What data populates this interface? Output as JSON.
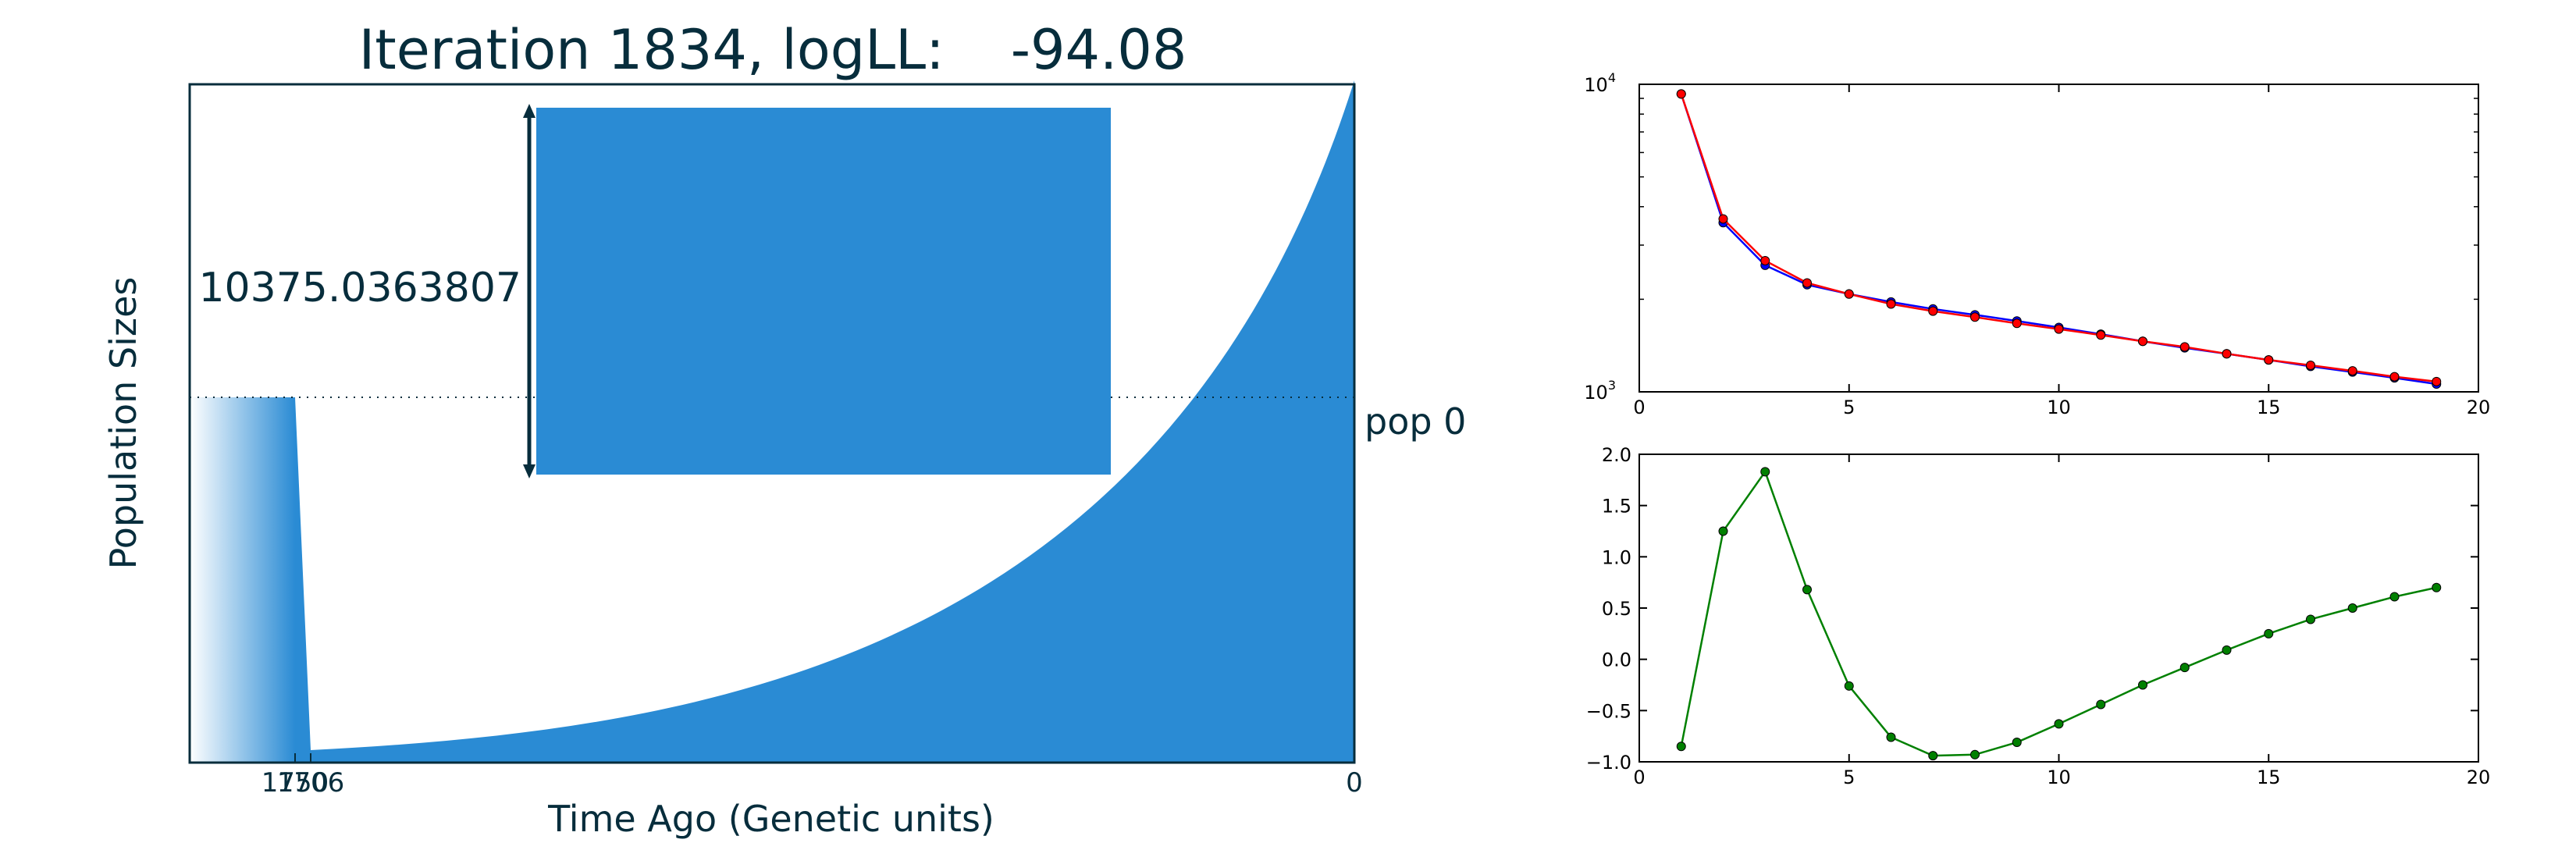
{
  "title": {
    "prefix": "Iteration 1834, logLL:",
    "value": "-94.08"
  },
  "colors": {
    "fill": "#2a8bd4",
    "dark_text": "#072d3c",
    "series_blue": "#0000ff",
    "series_red": "#ff0000",
    "series_green": "#008000",
    "axes": "#000000"
  },
  "chart_data": [
    {
      "type": "area",
      "ylabel": "Population Sizes",
      "xlabel": "Time Ago (Genetic units)",
      "xticks": [
        "1750",
        "1706",
        "0"
      ],
      "ref_line_label": "pop 0",
      "scale_value_label": "10375.0363807",
      "grid": false,
      "shape": {
        "recent_segment": "exponential growth from time 0 (largest size) to ~1706 (smallest size)",
        "ancient_segment": "constant size beyond ~1750, drawn with a fading gradient"
      }
    },
    {
      "type": "line",
      "yscale": "log",
      "xlim": [
        0,
        20
      ],
      "ylim": [
        1000,
        10000
      ],
      "xticks": [
        "0",
        "5",
        "10",
        "15",
        "20"
      ],
      "yticks": [
        "10^3",
        "10^4"
      ],
      "x": [
        1,
        2,
        3,
        4,
        5,
        6,
        7,
        8,
        9,
        10,
        11,
        12,
        13,
        14,
        15,
        16,
        17,
        18,
        19
      ],
      "series": [
        {
          "color": "blue",
          "values": [
            9300,
            3550,
            2580,
            2230,
            2080,
            1960,
            1860,
            1780,
            1700,
            1620,
            1540,
            1460,
            1390,
            1330,
            1270,
            1210,
            1160,
            1110,
            1060
          ]
        },
        {
          "color": "red",
          "values": [
            9300,
            3650,
            2670,
            2260,
            2080,
            1930,
            1830,
            1750,
            1670,
            1600,
            1530,
            1460,
            1400,
            1330,
            1270,
            1220,
            1170,
            1120,
            1080
          ]
        }
      ]
    },
    {
      "type": "line",
      "xlim": [
        0,
        20
      ],
      "ylim": [
        -1.0,
        2.0
      ],
      "xticks": [
        "0",
        "5",
        "10",
        "15",
        "20"
      ],
      "yticks": [
        "−1.0",
        "−0.5",
        "0.0",
        "0.5",
        "1.0",
        "1.5",
        "2.0"
      ],
      "x": [
        1,
        2,
        3,
        4,
        5,
        6,
        7,
        8,
        9,
        10,
        11,
        12,
        13,
        14,
        15,
        16,
        17,
        18,
        19
      ],
      "series": [
        {
          "color": "green",
          "values": [
            -0.85,
            1.25,
            1.83,
            0.68,
            -0.26,
            -0.76,
            -0.94,
            -0.93,
            -0.81,
            -0.63,
            -0.44,
            -0.25,
            -0.08,
            0.09,
            0.25,
            0.39,
            0.5,
            0.61,
            0.7
          ]
        }
      ]
    }
  ]
}
